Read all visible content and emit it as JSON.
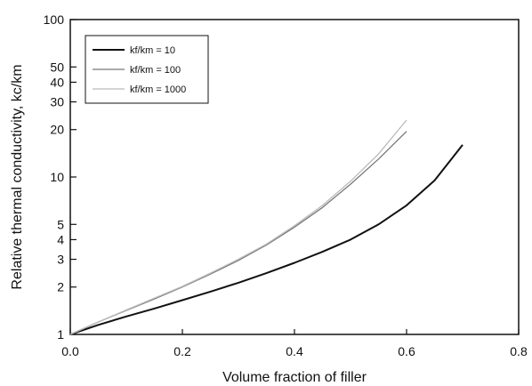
{
  "chart_data": {
    "type": "line",
    "xlabel": "Volume fraction of filler",
    "ylabel": "Relative thermal conductivity, kc/km",
    "xlim": [
      0.0,
      0.8
    ],
    "ylim": [
      1,
      100
    ],
    "yscale": "log",
    "x_ticks": [
      "0.0",
      "0.2",
      "0.4",
      "0.6",
      "0.8"
    ],
    "y_ticks": [
      {
        "value": 1,
        "label": "1"
      },
      {
        "value": 2,
        "label": "2"
      },
      {
        "value": 3,
        "label": "3"
      },
      {
        "value": 4,
        "label": "4"
      },
      {
        "value": 5,
        "label": "5"
      },
      {
        "value": 10,
        "label": "10"
      },
      {
        "value": 20,
        "label": "20"
      },
      {
        "value": 30,
        "label": "30"
      },
      {
        "value": 40,
        "label": "40"
      },
      {
        "value": 50,
        "label": "50"
      },
      {
        "value": 100,
        "label": "100"
      }
    ],
    "grid": false,
    "legend_position": "top-left",
    "series": [
      {
        "name": "kf/km = 10",
        "color": "#111111",
        "x": [
          0.0,
          0.05,
          0.1,
          0.15,
          0.2,
          0.25,
          0.3,
          0.35,
          0.4,
          0.45,
          0.5,
          0.55,
          0.6,
          0.65,
          0.7
        ],
        "y": [
          1.0,
          1.15,
          1.3,
          1.46,
          1.65,
          1.87,
          2.13,
          2.45,
          2.85,
          3.35,
          4.0,
          5.0,
          6.6,
          9.5,
          16.0
        ]
      },
      {
        "name": "kf/km = 100",
        "color": "#777777",
        "x": [
          0.0,
          0.05,
          0.1,
          0.15,
          0.2,
          0.25,
          0.3,
          0.35,
          0.4,
          0.45,
          0.5,
          0.55,
          0.6
        ],
        "y": [
          1.0,
          1.2,
          1.42,
          1.68,
          2.0,
          2.42,
          2.95,
          3.7,
          4.8,
          6.4,
          9.0,
          13.0,
          19.5
        ]
      },
      {
        "name": "kf/km = 1000",
        "color": "#bbbbbb",
        "x": [
          0.0,
          0.05,
          0.1,
          0.15,
          0.2,
          0.25,
          0.3,
          0.35,
          0.4,
          0.45,
          0.5,
          0.55,
          0.6
        ],
        "y": [
          1.0,
          1.2,
          1.43,
          1.7,
          2.02,
          2.45,
          3.0,
          3.75,
          4.9,
          6.6,
          9.4,
          14.0,
          23.0
        ]
      }
    ]
  }
}
